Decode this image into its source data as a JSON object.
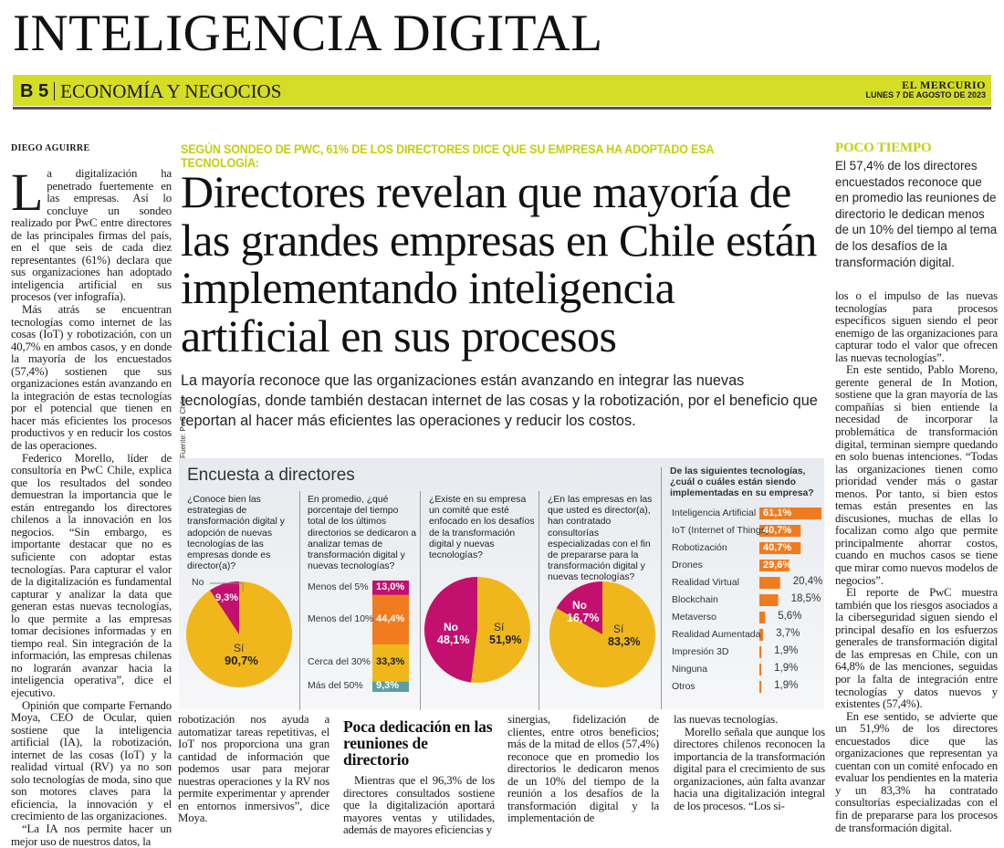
{
  "page_title": "INTELIGENCIA DIGITAL",
  "section": {
    "page": "B 5",
    "name": "ECONOMÍA Y NEGOCIOS",
    "paper": "EL MERCURIO",
    "date": "LUNES 7 DE AGOSTO DE 2023",
    "accent": "#d5dd26"
  },
  "article": {
    "byline": "DIEGO AGUIRRE",
    "kicker": "SEGÚN SONDEO DE PWC, 61% DE LOS DIRECTORES DICE QUE SU EMPRESA HA ADOPTADO ESA TECNOLOGÍA:",
    "headline": "Directores revelan que mayoría de las grandes empresas en Chile están implementando inteligencia artificial en sus procesos",
    "deck": "La mayoría reconoce que las organizaciones están avanzando en integrar las nuevas tecnologías, donde también destacan internet de las cosas y la robotización, por el beneficio que reportan al hacer más eficientes las operaciones y reducir los costos.",
    "dropcap": "L",
    "left_column": [
      "a digitalización ha penetrado fuertemente en las empresas. Así lo concluye un sondeo realizado por PwC entre directores de las principales firmas del país, en el que seis de cada diez representantes (61%) declara que sus organizaciones han adoptado inteligencia artificial en sus procesos (ver infografía).",
      "Más atrás se encuentran tecnologías como internet de las cosas (IoT) y robotización, con un 40,7% en ambos casos, y en donde la mayoría de los encuestados (57,4%) sostienen que sus organizaciones están avanzando en la integración de estas tecnologías por el potencial que tienen en hacer más eficientes los procesos productivos y en reducir los costos de las operaciones.",
      "Federico Morello, líder de consultoría en PwC Chile, explica que los resultados del sondeo demuestran la importancia que le están entregando los directores chilenos a la innovación en los negocios. “Sin embargo, es importante destacar que no es suficiente con adoptar estas tecnologías. Para capturar el valor de la digitalización es fundamental capturar y analizar la data que generan estas nuevas tecnologías, lo que permite a las empresas tomar decisiones informadas y en tiempo real. Sin integración de la información, las empresas chilenas no lograrán avanzar hacia la inteligencia operativa”, dice el ejecutivo.",
      "Opinión que comparte Fernando Moya, CEO de Ocular, quien sostiene que la inteligencia artificial (IA), la robotización, internet de las cosas (IoT) y la realidad virtual (RV) ya no son solo tecnologías de moda, sino que son motores claves para la eficiencia, la innovación y el crecimiento de las organizaciones.",
      "“La IA nos permite hacer un mejor uso de nuestros datos, la"
    ],
    "bottom_col_1": [
      "robotización nos ayuda a automatizar tareas repetitivas, el IoT nos proporciona una gran cantidad de información que podemos usar para mejorar nuestras operaciones y la RV nos permite experimentar y aprender en entornos inmersivos”, dice Moya."
    ],
    "subhead": "Poca dedicación en las reuniones de directorio",
    "bottom_col_2": [
      "Mientras que el 96,3% de los directores consultados sostiene que la digitalización aportará mayores ventas y utilidades, además de mayores eficiencias y"
    ],
    "bottom_col_3": [
      "sinergias, fidelización de clientes, entre otros beneficios; más de la mitad de ellos (57,4%) reconoce que en promedio los directorios le dedicaron menos de un 10% del tiempo de la reunión a los desafíos de la transformación digital y la implementación de"
    ],
    "bottom_col_4": [
      "las nuevas tecnologías.",
      "Morello señala que aunque los directores chilenos reconocen la importancia de la transformación digital para el crecimiento de sus organizaciones, aún falta avanzar hacia una digitalización integral de los procesos. “Los si-"
    ],
    "right_column": [
      "los o el impulso de las nuevas tecnologías para procesos específicos siguen siendo el peor enemigo de las organizaciones para capturar todo el valor que ofrecen las nuevas tecnologías”.",
      "En este sentido, Pablo Moreno, gerente general de In Motion, sostiene que la gran mayoría de las compañías si bien entiende la necesidad de incorporar la problemática de transformación digital, terminan siempre quedando en solo buenas intenciones. “Todas las organizaciones tienen como prioridad vender más o gastar menos. Por tanto, si bien estos temas están presentes en las discusiones, muchas de ellas lo focalizan como algo que permite principalmente ahorrar costos, cuando en muchos casos se tiene que mirar como nuevos modelos de negocios”.",
      "El reporte de PwC muestra también que los riesgos asociados a la ciberseguridad siguen siendo el principal desafío en los esfuerzos generales de transformación digital de las empresas en Chile, con un 64,8% de las menciones, seguidas por la falta de integración entre tecnologías y datos nuevos y existentes (57,4%).",
      "En ese sentido, se advierte que un 51,9% de los directores encuestados dice que las organizaciones que representan ya cuentan con un comité enfocado en evaluar los pendientes en la materia y un 83,3% ha contratado consultorías especializadas con el fin de prepararse para los procesos de transformación digital."
    ]
  },
  "sidebar": {
    "title": "POCO TIEMPO",
    "text": "El 57,4% de los directores encuestados reconoce que en promedio las reuniones de directorio le dedican menos de un 10% del tiempo al tema de los desafíos de la transformación digital."
  },
  "infographic": {
    "title": "Encuesta a directores",
    "source": "Fuente: PwC Chile",
    "colors": {
      "si": "#f0b71c",
      "no": "#c3106e",
      "orange": "#f07c1f",
      "teal": "#5f9ea0"
    },
    "q1": {
      "question": "¿Conoce bien las estrategias de transformación digital y adopción de nuevas tecnologías de las empresas donde es director(a)?",
      "type": "pie",
      "slices": [
        {
          "label": "Sí",
          "value": 90.7,
          "text": "90,7%"
        },
        {
          "label": "No",
          "value": 9.3,
          "text": "9,3%"
        }
      ]
    },
    "q2": {
      "question": "En promedio, ¿qué porcentaje del tiempo total de los últimos directorios se dedicaron a analizar temas de transformación digital y nuevas tecnologías?",
      "type": "stacked-bar",
      "segments": [
        {
          "label": "Menos del 5%",
          "value": 13.0,
          "text": "13,0%"
        },
        {
          "label": "Menos del 10%",
          "value": 44.4,
          "text": "44,4%"
        },
        {
          "label": "Cerca del 30%",
          "value": 33.3,
          "text": "33,3%"
        },
        {
          "label": "Más del 50%",
          "value": 9.3,
          "text": "9,3%"
        }
      ]
    },
    "q3": {
      "question": "¿Existe en su empresa un comité que esté enfocado en los desafíos de la transformación digital y nuevas tecnologías?",
      "type": "pie",
      "slices": [
        {
          "label": "Sí",
          "value": 51.9,
          "text": "51,9%"
        },
        {
          "label": "No",
          "value": 48.1,
          "text": "48,1%"
        }
      ]
    },
    "q4": {
      "question": "¿En las empresas en las que usted es director(a), han contratado consultorías especializadas con el fin de prepararse para la transformación digital y nuevas tecnologías?",
      "type": "pie",
      "slices": [
        {
          "label": "Sí",
          "value": 83.3,
          "text": "83,3%"
        },
        {
          "label": "No",
          "value": 16.7,
          "text": "16,7%"
        }
      ]
    },
    "q5": {
      "question": "De las siguientes tecnologías, ¿cuál o cuáles están siendo implementadas en su empresa?",
      "type": "bar",
      "items": [
        {
          "label": "Inteligencia Artificial",
          "value": 61.1,
          "text": "61,1%"
        },
        {
          "label": "IoT (Internet of Things)",
          "value": 40.7,
          "text": "40,7%"
        },
        {
          "label": "Robotización",
          "value": 40.7,
          "text": "40,7%"
        },
        {
          "label": "Drones",
          "value": 29.6,
          "text": "29,6%"
        },
        {
          "label": "Realidad Virtual",
          "value": 20.4,
          "text": "20,4%"
        },
        {
          "label": "Blockchain",
          "value": 18.5,
          "text": "18,5%"
        },
        {
          "label": "Metaverso",
          "value": 5.6,
          "text": "5,6%"
        },
        {
          "label": "Realidad Aumentada",
          "value": 3.7,
          "text": "3,7%"
        },
        {
          "label": "Impresión 3D",
          "value": 1.9,
          "text": "1,9%"
        },
        {
          "label": "Ninguna",
          "value": 1.9,
          "text": "1,9%"
        },
        {
          "label": "Otros",
          "value": 1.9,
          "text": "1,9%"
        }
      ]
    }
  }
}
